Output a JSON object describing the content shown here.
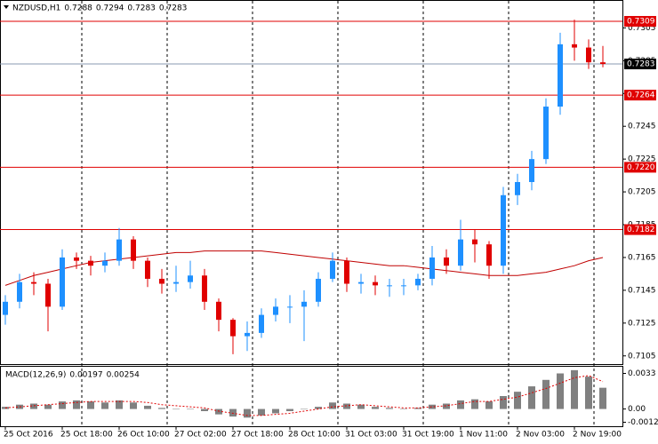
{
  "chart_data": {
    "type": "candlestick",
    "header": {
      "symbol": "NZDUSD,H1",
      "ohlc": [
        0.7288,
        0.7294,
        0.7283,
        0.7283
      ]
    },
    "categories": [
      "25 Oct 2016",
      null,
      null,
      null,
      "25 Oct 18:00",
      null,
      null,
      null,
      "26 Oct 10:00",
      null,
      null,
      null,
      "27 Oct 02:00",
      null,
      null,
      null,
      "27 Oct 18:00",
      null,
      null,
      null,
      "28 Oct 10:00",
      null,
      null,
      null,
      "31 Oct 03:00",
      null,
      null,
      null,
      "31 Oct 19:00",
      null,
      null,
      null,
      "1 Nov 11:00",
      null,
      null,
      null,
      "2 Nov 03:00",
      null,
      null,
      null,
      "2 Nov 19:00",
      null,
      null
    ],
    "open": [
      0.713,
      0.7138,
      0.715,
      0.7149,
      0.7135,
      0.7165,
      0.7163,
      0.716,
      0.7163,
      0.7176,
      0.7163,
      0.7152,
      0.7149,
      0.715,
      0.7154,
      0.7138,
      0.7127,
      0.7117,
      0.7119,
      0.713,
      0.7135,
      0.7135,
      0.7138,
      0.7152,
      0.7163,
      0.7149,
      0.715,
      0.7148,
      0.7148,
      0.7148,
      0.7152,
      0.7165,
      0.716,
      0.7176,
      0.7173,
      0.716,
      0.7203,
      0.7211,
      0.7225,
      0.7257,
      0.7295,
      0.7293,
      0.7284
    ],
    "high": [
      0.7142,
      0.7155,
      0.7156,
      0.7152,
      0.717,
      0.7168,
      0.7166,
      0.7168,
      0.7183,
      0.7178,
      0.7165,
      0.7158,
      0.716,
      0.7163,
      0.7158,
      0.714,
      0.7128,
      0.7126,
      0.7134,
      0.714,
      0.7142,
      0.7145,
      0.7156,
      0.7168,
      0.7165,
      0.7155,
      0.7154,
      0.7152,
      0.7152,
      0.7155,
      0.7172,
      0.717,
      0.7188,
      0.7182,
      0.7175,
      0.7208,
      0.7216,
      0.723,
      0.7262,
      0.7302,
      0.731,
      0.7298,
      0.7294
    ],
    "low": [
      0.7124,
      0.7134,
      0.7142,
      0.712,
      0.7133,
      0.7158,
      0.7154,
      0.7156,
      0.716,
      0.7158,
      0.7147,
      0.7143,
      0.7144,
      0.7146,
      0.7133,
      0.712,
      0.7106,
      0.7108,
      0.7116,
      0.7126,
      0.7125,
      0.7114,
      0.7135,
      0.715,
      0.7144,
      0.7143,
      0.7142,
      0.7141,
      0.7142,
      0.7145,
      0.7148,
      0.7155,
      0.7157,
      0.7162,
      0.7152,
      0.7155,
      0.7197,
      0.7206,
      0.7222,
      0.7252,
      0.7285,
      0.728,
      0.7281
    ],
    "close": [
      0.7138,
      0.715,
      0.7149,
      0.7135,
      0.7165,
      0.7163,
      0.716,
      0.7163,
      0.7176,
      0.7163,
      0.7152,
      0.7149,
      0.715,
      0.7154,
      0.7138,
      0.7127,
      0.7117,
      0.7119,
      0.713,
      0.7135,
      0.7135,
      0.7138,
      0.7152,
      0.7163,
      0.7149,
      0.715,
      0.7148,
      0.7148,
      0.7148,
      0.7152,
      0.7165,
      0.716,
      0.7176,
      0.7173,
      0.716,
      0.7203,
      0.7211,
      0.7225,
      0.7257,
      0.7295,
      0.7293,
      0.7284,
      0.7283
    ],
    "up_color": "#1e90ff",
    "down_color": "#e00000",
    "moving_average": {
      "color": "#c00000",
      "values": [
        0.7148,
        0.7151,
        0.7154,
        0.7156,
        0.7158,
        0.716,
        0.7162,
        0.7163,
        0.7164,
        0.7165,
        0.7166,
        0.7167,
        0.7168,
        0.7168,
        0.7169,
        0.7169,
        0.7169,
        0.7169,
        0.7169,
        0.7168,
        0.7167,
        0.7166,
        0.7165,
        0.7164,
        0.7163,
        0.7162,
        0.7161,
        0.716,
        0.716,
        0.7159,
        0.7158,
        0.7157,
        0.7156,
        0.7155,
        0.7154,
        0.7154,
        0.7154,
        0.7155,
        0.7156,
        0.7158,
        0.716,
        0.7163,
        0.7165
      ]
    },
    "ylim": [
      0.71,
      0.7322
    ],
    "yticks": [
      0.7105,
      0.7125,
      0.7145,
      0.7165,
      0.7185,
      0.7205,
      0.7225,
      0.7245,
      0.7265,
      0.7285,
      0.7305
    ],
    "levels": [
      {
        "value": 0.7309,
        "label": "0.7309"
      },
      {
        "value": 0.7264,
        "label": "0.7264"
      },
      {
        "value": 0.722,
        "label": "0.7220"
      },
      {
        "value": 0.7182,
        "label": "0.7182"
      }
    ],
    "level_color": "#e00000",
    "current_price": 0.7283,
    "macd": {
      "name": "MACD(12,26,9)",
      "histogram": [
        0.0002,
        0.0004,
        0.0005,
        0.0004,
        0.0007,
        0.0008,
        0.0007,
        0.0006,
        0.0008,
        0.0006,
        0.0003,
        0.0001,
        0.0,
        0.0,
        -0.0002,
        -0.0005,
        -0.0007,
        -0.0008,
        -0.0006,
        -0.0004,
        -0.0002,
        0.0,
        0.0002,
        0.0006,
        0.0005,
        0.0004,
        0.0002,
        0.0001,
        0.0,
        0.0001,
        0.0004,
        0.0005,
        0.0008,
        0.0009,
        0.0007,
        0.0012,
        0.0016,
        0.0021,
        0.0027,
        0.0033,
        0.0036,
        0.003,
        0.00197
      ],
      "signal": [
        0.0001,
        0.0002,
        0.0003,
        0.0004,
        0.0005,
        0.0006,
        0.0007,
        0.0007,
        0.0007,
        0.0007,
        0.0006,
        0.0004,
        0.0003,
        0.0002,
        0.0001,
        -0.0002,
        -0.0004,
        -0.0006,
        -0.0006,
        -0.0005,
        -0.0004,
        -0.0002,
        0.0,
        0.0002,
        0.0003,
        0.0004,
        0.0003,
        0.0002,
        0.0001,
        0.0001,
        0.0002,
        0.0003,
        0.0005,
        0.0007,
        0.0007,
        0.0009,
        0.0011,
        0.0015,
        0.0019,
        0.0024,
        0.0029,
        0.0031,
        0.00254
      ],
      "histogram_color": "#808080",
      "signal_color": "#e00000",
      "ylim": [
        -0.0016,
        0.004
      ],
      "yticks": [
        0.0033,
        {
          "value": 0,
          "label": "0.00"
        },
        -0.00123
      ]
    }
  }
}
